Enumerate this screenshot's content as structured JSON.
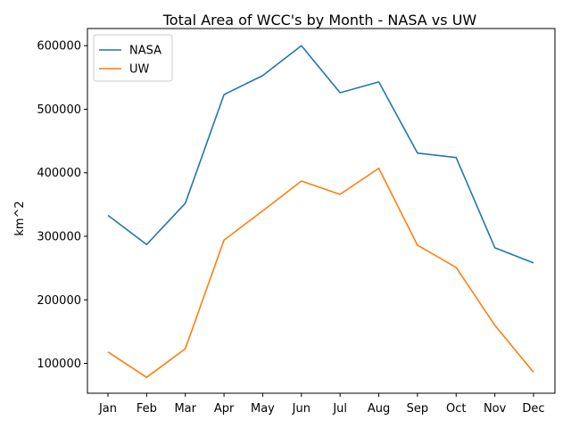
{
  "chart_data": {
    "type": "line",
    "title": "Total Area of WCC's by Month - NASA vs UW",
    "xlabel": "",
    "ylabel": "km^2",
    "categories": [
      "Jan",
      "Feb",
      "Mar",
      "Apr",
      "May",
      "Jun",
      "Jul",
      "Aug",
      "Sep",
      "Oct",
      "Nov",
      "Dec"
    ],
    "series": [
      {
        "name": "NASA",
        "color": "#1f77b4",
        "values": [
          333000,
          287000,
          352000,
          523000,
          553000,
          600000,
          526000,
          543000,
          431000,
          424000,
          282000,
          258000
        ]
      },
      {
        "name": "UW",
        "color": "#ff7f0e",
        "values": [
          118000,
          78000,
          123000,
          294000,
          340000,
          387000,
          366000,
          407000,
          286000,
          251000,
          160000,
          86000
        ]
      }
    ],
    "ylim": [
      53000,
      627000
    ],
    "yticks": [
      100000,
      200000,
      300000,
      400000,
      500000,
      600000
    ],
    "legend_position": "top-left",
    "grid": false
  }
}
